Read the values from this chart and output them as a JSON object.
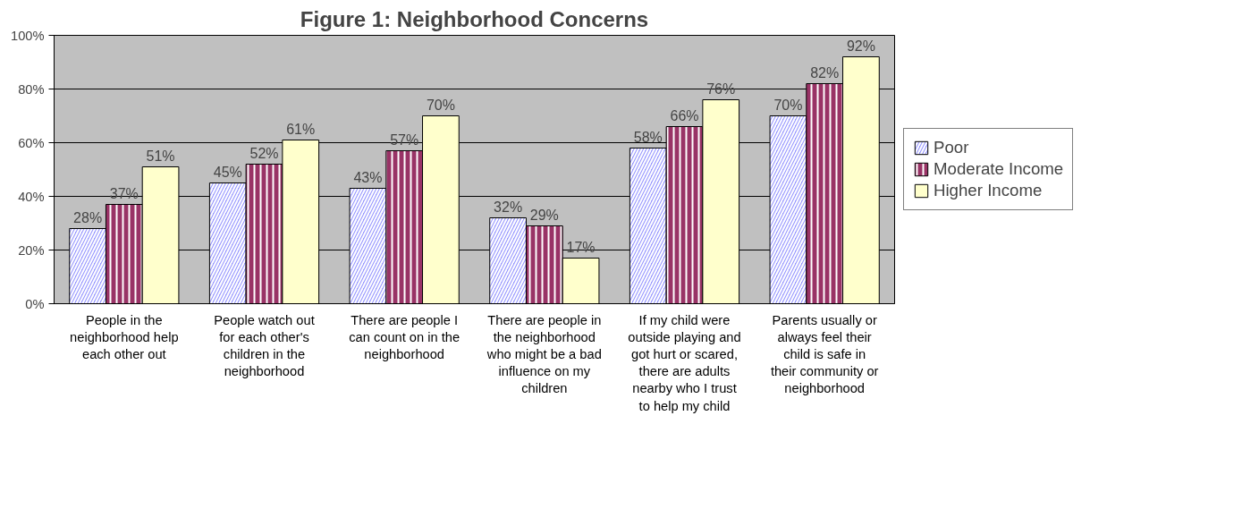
{
  "chart_data": {
    "type": "bar",
    "title": "Figure 1: Neighborhood Concerns",
    "categories": [
      "People in the neighborhood help each other out",
      "People watch out for each other's children in the neighborhood",
      "There are people I can count on in the neighborhood",
      "There are people in the neighborhood who might be a bad influence on my children",
      "If my child were outside playing and got hurt or scared, there are adults nearby who I trust to help my child",
      "Parents usually or always feel their child is safe in their community or neighborhood"
    ],
    "series": [
      {
        "name": "Poor",
        "color": "#9999ff",
        "values": [
          28,
          45,
          43,
          32,
          58,
          70
        ]
      },
      {
        "name": "Moderate Income",
        "color": "#993366",
        "values": [
          37,
          52,
          57,
          29,
          66,
          82
        ]
      },
      {
        "name": "Higher Income",
        "color": "#ffffcc",
        "values": [
          51,
          61,
          70,
          17,
          76,
          92
        ]
      }
    ],
    "ylim": [
      0,
      100
    ],
    "yticks": [
      {
        "value": 0,
        "label": "0%"
      },
      {
        "value": 20,
        "label": "20%"
      },
      {
        "value": 40,
        "label": "40%"
      },
      {
        "value": 60,
        "label": "60%"
      },
      {
        "value": 80,
        "label": "80%"
      },
      {
        "value": 100,
        "label": "100%"
      }
    ],
    "value_labels": [
      [
        "28%",
        "45%",
        "43%",
        "32%",
        "58%",
        "70%"
      ],
      [
        "37%",
        "52%",
        "57%",
        "29%",
        "66%",
        "82%"
      ],
      [
        "51%",
        "61%",
        "70%",
        "17%",
        "76%",
        "92%"
      ]
    ],
    "grid": "y",
    "legend": "right"
  }
}
